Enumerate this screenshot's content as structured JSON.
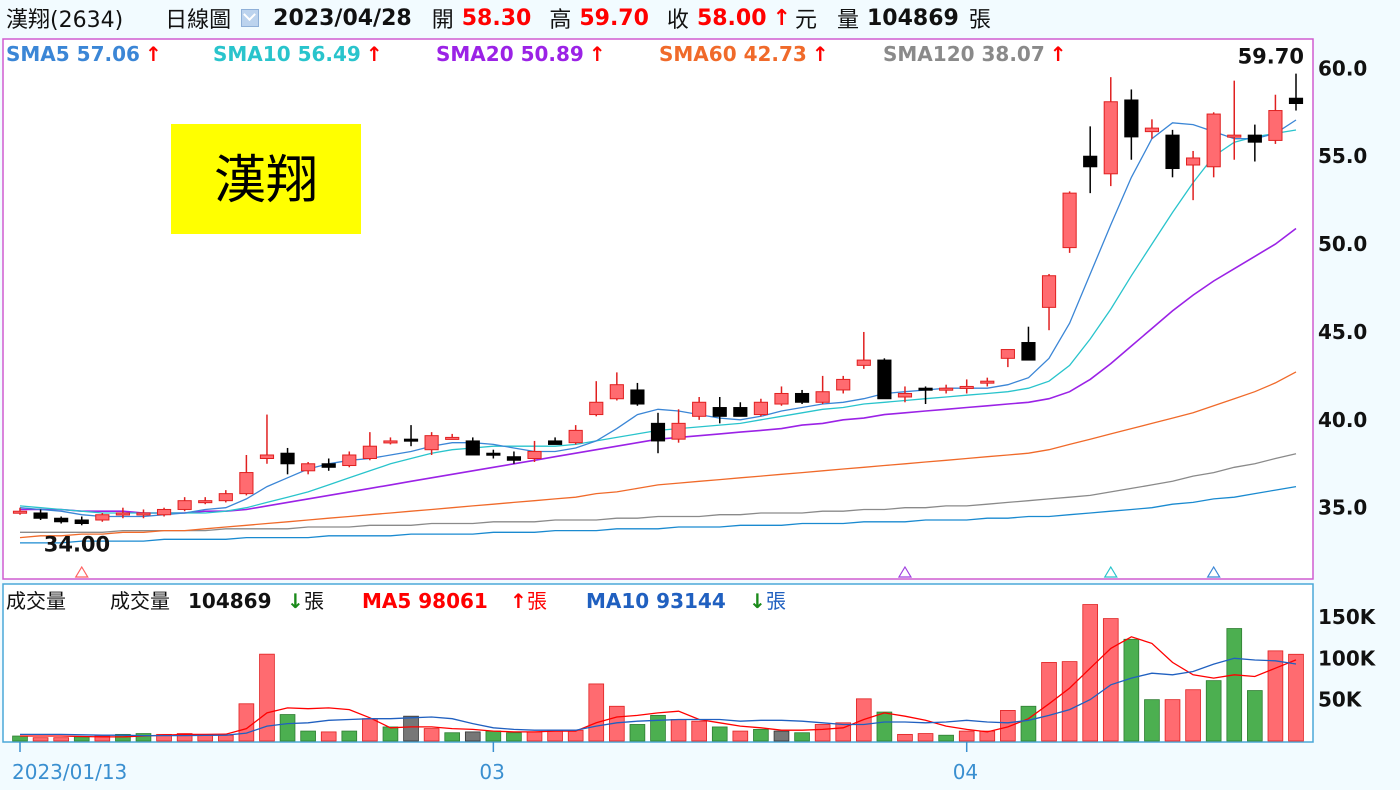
{
  "header": {
    "stock_name": "漢翔(2634)",
    "period": "日線圖",
    "date": "2023/04/28",
    "open_label": "開",
    "open_value": "58.30",
    "high_label": "高",
    "high_value": "59.70",
    "close_label": "收",
    "close_value": "58.00",
    "close_unit": "元",
    "vol_label": "量",
    "vol_value": "104869",
    "vol_unit": "張",
    "up_arrow": "↑"
  },
  "banner": {
    "text": "漢翔",
    "color": "#ffff00"
  },
  "colors": {
    "up": "#ff6b70",
    "up_border": "#e02020",
    "down": "#000000",
    "vol_green": "#4caf50",
    "vol_gray": "#777777",
    "frame_price": "#d05cd0",
    "frame_vol": "#4aa8d8",
    "sma5": "#3b86d6",
    "sma10": "#29c4cc",
    "sma20": "#9b22e6",
    "sma60": "#f06a2a",
    "sma120": "#8a8a8a",
    "sma240": "#1a8ad0",
    "ma5v": "#ff0000",
    "ma10v": "#2060c0"
  },
  "chart_data": [
    {
      "type": "candlestick",
      "title": "漢翔(2634) 日線圖",
      "ylim": [
        31,
        61.5
      ],
      "y_ticks": [
        "60.0",
        "55.0",
        "50.0",
        "45.0",
        "40.0",
        "35.0"
      ],
      "x_ticks": [
        "2023/01/13",
        "03",
        "04"
      ],
      "max_label": "59.70",
      "min_label": "34.00",
      "legend": [
        {
          "name": "SMA5",
          "value": "57.06",
          "arrow": "↑"
        },
        {
          "name": "SMA10",
          "value": "56.49",
          "arrow": "↑"
        },
        {
          "name": "SMA20",
          "value": "50.89",
          "arrow": "↑"
        },
        {
          "name": "SMA60",
          "value": "42.73",
          "arrow": "↑"
        },
        {
          "name": "SMA120",
          "value": "38.07",
          "arrow": "↑"
        }
      ],
      "ohlc": [
        [
          34.8,
          35.0,
          34.6,
          34.8
        ],
        [
          34.7,
          34.9,
          34.3,
          34.4
        ],
        [
          34.4,
          34.5,
          34.1,
          34.2
        ],
        [
          34.3,
          34.5,
          34.0,
          34.1
        ],
        [
          34.3,
          34.7,
          34.2,
          34.6
        ],
        [
          34.6,
          35.0,
          34.4,
          34.7
        ],
        [
          34.6,
          34.9,
          34.4,
          34.7
        ],
        [
          34.6,
          35.0,
          34.5,
          34.9
        ],
        [
          34.9,
          35.6,
          34.8,
          35.4
        ],
        [
          35.4,
          35.6,
          35.2,
          35.4
        ],
        [
          35.4,
          36.0,
          35.3,
          35.8
        ],
        [
          35.8,
          38.0,
          35.7,
          37.0
        ],
        [
          37.8,
          40.3,
          37.5,
          38.0
        ],
        [
          38.1,
          38.4,
          36.9,
          37.5
        ],
        [
          37.1,
          37.6,
          36.9,
          37.5
        ],
        [
          37.5,
          37.8,
          37.1,
          37.3
        ],
        [
          37.4,
          38.2,
          37.3,
          38.0
        ],
        [
          37.8,
          39.3,
          37.7,
          38.5
        ],
        [
          38.8,
          39.0,
          38.6,
          38.8
        ],
        [
          38.9,
          39.7,
          38.5,
          38.8
        ],
        [
          38.3,
          39.3,
          38.0,
          39.1
        ],
        [
          39.0,
          39.2,
          38.9,
          39.0
        ],
        [
          38.8,
          39.0,
          38.0,
          38.0
        ],
        [
          38.1,
          38.3,
          37.8,
          38.0
        ],
        [
          37.9,
          38.2,
          37.5,
          37.7
        ],
        [
          37.8,
          38.8,
          37.6,
          38.2
        ],
        [
          38.8,
          39.0,
          38.6,
          38.6
        ],
        [
          38.7,
          39.7,
          38.6,
          39.4
        ],
        [
          40.3,
          42.2,
          40.2,
          41.0
        ],
        [
          41.2,
          42.7,
          41.1,
          42.0
        ],
        [
          41.7,
          42.1,
          40.8,
          40.9
        ],
        [
          39.8,
          40.4,
          38.1,
          38.8
        ],
        [
          38.9,
          40.6,
          38.7,
          39.8
        ],
        [
          40.2,
          41.3,
          40.0,
          41.0
        ],
        [
          40.7,
          41.3,
          39.8,
          40.2
        ],
        [
          40.7,
          41.0,
          40.2,
          40.2
        ],
        [
          40.3,
          41.2,
          40.2,
          41.0
        ],
        [
          40.9,
          41.9,
          40.8,
          41.5
        ],
        [
          41.5,
          41.7,
          40.9,
          41.0
        ],
        [
          41.0,
          42.5,
          40.9,
          41.6
        ],
        [
          41.7,
          42.5,
          41.5,
          42.3
        ],
        [
          43.1,
          45.0,
          42.9,
          43.4
        ],
        [
          43.4,
          43.5,
          41.2,
          41.2
        ],
        [
          41.3,
          41.9,
          41.0,
          41.5
        ],
        [
          41.8,
          41.9,
          40.9,
          41.7
        ],
        [
          41.7,
          42.0,
          41.5,
          41.8
        ],
        [
          41.9,
          42.3,
          41.5,
          41.9
        ],
        [
          42.1,
          42.4,
          41.9,
          42.2
        ],
        [
          43.5,
          44.0,
          43.0,
          44.0
        ],
        [
          44.4,
          45.3,
          43.4,
          43.4
        ],
        [
          46.4,
          48.3,
          45.1,
          48.2
        ],
        [
          49.8,
          53.0,
          49.5,
          52.9
        ],
        [
          55.0,
          56.7,
          52.9,
          54.4
        ],
        [
          54.0,
          59.5,
          53.3,
          58.1
        ],
        [
          58.2,
          58.8,
          54.8,
          56.1
        ],
        [
          56.4,
          57.1,
          56.0,
          56.6
        ],
        [
          56.2,
          56.5,
          53.8,
          54.3
        ],
        [
          54.5,
          55.3,
          52.5,
          54.9
        ],
        [
          54.4,
          57.5,
          53.8,
          57.4
        ],
        [
          56.1,
          59.3,
          54.8,
          56.2
        ],
        [
          56.2,
          56.8,
          54.7,
          55.8
        ],
        [
          55.9,
          58.5,
          55.7,
          57.6
        ],
        [
          58.3,
          59.7,
          57.6,
          58.0
        ]
      ],
      "sma5": [
        35.0,
        34.9,
        34.8,
        34.6,
        34.5,
        34.5,
        34.5,
        34.6,
        34.7,
        34.9,
        35.0,
        35.5,
        36.2,
        36.7,
        37.2,
        37.5,
        37.7,
        37.8,
        38.0,
        38.2,
        38.5,
        38.7,
        38.7,
        38.6,
        38.4,
        38.2,
        38.2,
        38.4,
        38.8,
        39.5,
        40.3,
        40.6,
        40.5,
        40.3,
        40.1,
        40.0,
        40.2,
        40.5,
        40.7,
        40.9,
        41.0,
        41.2,
        41.5,
        41.6,
        41.7,
        41.8,
        41.8,
        41.8,
        42.0,
        42.4,
        43.5,
        45.5,
        48.3,
        51.1,
        53.8,
        56.0,
        56.9,
        56.8,
        56.4,
        56.0,
        56.0,
        56.3,
        57.06
      ],
      "sma10": [
        35.1,
        35.0,
        34.9,
        34.8,
        34.7,
        34.7,
        34.7,
        34.7,
        34.7,
        34.7,
        34.8,
        35.0,
        35.3,
        35.6,
        35.9,
        36.3,
        36.7,
        37.1,
        37.5,
        37.8,
        38.1,
        38.3,
        38.4,
        38.5,
        38.5,
        38.5,
        38.5,
        38.6,
        38.8,
        39.0,
        39.2,
        39.4,
        39.5,
        39.6,
        39.7,
        39.8,
        40.0,
        40.2,
        40.4,
        40.6,
        40.7,
        40.9,
        41.0,
        41.1,
        41.2,
        41.3,
        41.4,
        41.5,
        41.6,
        41.8,
        42.2,
        43.1,
        44.6,
        46.3,
        48.2,
        50.0,
        51.8,
        53.5,
        55.0,
        55.8,
        56.1,
        56.3,
        56.49
      ],
      "sma20": [
        34.9,
        34.9,
        34.9,
        34.8,
        34.8,
        34.8,
        34.7,
        34.7,
        34.7,
        34.8,
        34.8,
        34.9,
        35.1,
        35.3,
        35.5,
        35.7,
        35.9,
        36.1,
        36.3,
        36.5,
        36.7,
        36.9,
        37.1,
        37.3,
        37.5,
        37.7,
        37.9,
        38.1,
        38.3,
        38.5,
        38.7,
        38.9,
        39.0,
        39.1,
        39.2,
        39.3,
        39.4,
        39.5,
        39.7,
        39.8,
        40.0,
        40.1,
        40.3,
        40.4,
        40.5,
        40.6,
        40.7,
        40.8,
        40.9,
        41.0,
        41.2,
        41.6,
        42.3,
        43.2,
        44.2,
        45.2,
        46.2,
        47.1,
        47.9,
        48.6,
        49.3,
        50.0,
        50.89
      ],
      "sma60": [
        33.3,
        33.4,
        33.4,
        33.5,
        33.5,
        33.6,
        33.6,
        33.7,
        33.7,
        33.8,
        33.9,
        34.0,
        34.1,
        34.2,
        34.3,
        34.4,
        34.5,
        34.6,
        34.7,
        34.8,
        34.9,
        35.0,
        35.1,
        35.2,
        35.3,
        35.4,
        35.5,
        35.6,
        35.8,
        35.9,
        36.1,
        36.3,
        36.4,
        36.5,
        36.6,
        36.7,
        36.8,
        36.9,
        37.0,
        37.1,
        37.2,
        37.3,
        37.4,
        37.5,
        37.6,
        37.7,
        37.8,
        37.9,
        38.0,
        38.1,
        38.3,
        38.6,
        38.9,
        39.2,
        39.5,
        39.8,
        40.1,
        40.4,
        40.8,
        41.2,
        41.6,
        42.1,
        42.73
      ],
      "sma120": [
        33.6,
        33.6,
        33.6,
        33.6,
        33.6,
        33.7,
        33.7,
        33.7,
        33.7,
        33.7,
        33.8,
        33.8,
        33.8,
        33.8,
        33.9,
        33.9,
        33.9,
        34.0,
        34.0,
        34.0,
        34.1,
        34.1,
        34.1,
        34.2,
        34.2,
        34.2,
        34.3,
        34.3,
        34.3,
        34.4,
        34.4,
        34.5,
        34.5,
        34.5,
        34.6,
        34.6,
        34.7,
        34.7,
        34.7,
        34.8,
        34.8,
        34.9,
        34.9,
        35.0,
        35.0,
        35.1,
        35.1,
        35.2,
        35.3,
        35.4,
        35.5,
        35.6,
        35.7,
        35.9,
        36.1,
        36.3,
        36.5,
        36.8,
        37.0,
        37.3,
        37.5,
        37.8,
        38.07
      ],
      "sma240": [
        33.0,
        33.0,
        33.0,
        33.1,
        33.1,
        33.1,
        33.1,
        33.2,
        33.2,
        33.2,
        33.2,
        33.3,
        33.3,
        33.3,
        33.3,
        33.4,
        33.4,
        33.4,
        33.4,
        33.5,
        33.5,
        33.5,
        33.5,
        33.6,
        33.6,
        33.6,
        33.7,
        33.7,
        33.7,
        33.8,
        33.8,
        33.8,
        33.9,
        33.9,
        33.9,
        34.0,
        34.0,
        34.0,
        34.1,
        34.1,
        34.1,
        34.2,
        34.2,
        34.2,
        34.3,
        34.3,
        34.3,
        34.4,
        34.4,
        34.5,
        34.5,
        34.6,
        34.7,
        34.8,
        34.9,
        35.0,
        35.2,
        35.3,
        35.5,
        35.6,
        35.8,
        36.0,
        36.2
      ]
    },
    {
      "type": "bar",
      "title": "成交量",
      "ylim": [
        0,
        185000
      ],
      "y_ticks": [
        "150K",
        "100K",
        "50K"
      ],
      "legend_label": "成交量",
      "legend_value": "104869",
      "legend_unit": "張",
      "legend_arrow": "↓",
      "ma5_label": "MA5",
      "ma5_value": "98061",
      "ma5_arrow": "↑",
      "ma5_unit": "張",
      "ma10_label": "MA10",
      "ma10_value": "93144",
      "ma10_arrow": "↓",
      "ma10_unit": "張",
      "volume": [
        6000,
        4000,
        4000,
        5000,
        6000,
        8000,
        9000,
        8000,
        9000,
        8000,
        7000,
        45000,
        105000,
        32000,
        12000,
        11000,
        12000,
        27000,
        17000,
        30000,
        15000,
        10000,
        11000,
        12000,
        10000,
        11000,
        12000,
        13000,
        69000,
        42000,
        20000,
        31000,
        26000,
        24000,
        17000,
        12000,
        14000,
        12000,
        10000,
        20000,
        22000,
        51000,
        35000,
        8000,
        9000,
        7000,
        12000,
        12000,
        37000,
        42000,
        95000,
        96000,
        165000,
        148000,
        123000,
        50000,
        50000,
        62000,
        73000,
        136000,
        61000,
        109000,
        104869
      ],
      "vol_color": [
        "d",
        "u",
        "u",
        "d",
        "u",
        "d",
        "d",
        "u",
        "u",
        "u",
        "u",
        "u",
        "u",
        "d",
        "d",
        "u",
        "d",
        "u",
        "d",
        "g",
        "u",
        "d",
        "g",
        "d",
        "d",
        "u",
        "u",
        "u",
        "u",
        "u",
        "d",
        "d",
        "u",
        "u",
        "d",
        "u",
        "d",
        "g",
        "d",
        "u",
        "u",
        "u",
        "d",
        "u",
        "u",
        "d",
        "u",
        "u",
        "u",
        "d",
        "u",
        "u",
        "u",
        "u",
        "d",
        "d",
        "u",
        "u",
        "d",
        "d",
        "d",
        "u",
        "u"
      ],
      "ma5": [
        6000,
        6000,
        6000,
        5500,
        5000,
        5000,
        6000,
        7000,
        8000,
        8000,
        8200,
        15000,
        34000,
        40000,
        39000,
        40000,
        38000,
        28000,
        16000,
        17000,
        17000,
        15000,
        14000,
        12000,
        11000,
        11000,
        12000,
        12000,
        22000,
        29000,
        31000,
        34000,
        36000,
        26000,
        22000,
        18000,
        16000,
        13000,
        13000,
        14000,
        16000,
        26000,
        34000,
        30000,
        25000,
        18000,
        14000,
        11000,
        17000,
        27000,
        45000,
        64000,
        88000,
        112000,
        126000,
        118000,
        95000,
        80000,
        76000,
        80000,
        78000,
        88000,
        98061
      ],
      "ma10": [
        8000,
        8000,
        8000,
        7500,
        7000,
        7000,
        6500,
        6500,
        6500,
        6800,
        7000,
        9500,
        18000,
        21000,
        22000,
        25000,
        26000,
        27000,
        27000,
        28000,
        29000,
        27000,
        21000,
        16000,
        14000,
        13000,
        13000,
        13000,
        18000,
        22000,
        24000,
        25000,
        26000,
        26000,
        26000,
        24000,
        25000,
        25000,
        24000,
        22000,
        20000,
        20000,
        23000,
        23000,
        22000,
        23000,
        25000,
        23000,
        22000,
        25000,
        31000,
        38000,
        50000,
        68000,
        76000,
        82000,
        80000,
        84000,
        93000,
        100000,
        98000,
        97000,
        93144
      ]
    }
  ]
}
